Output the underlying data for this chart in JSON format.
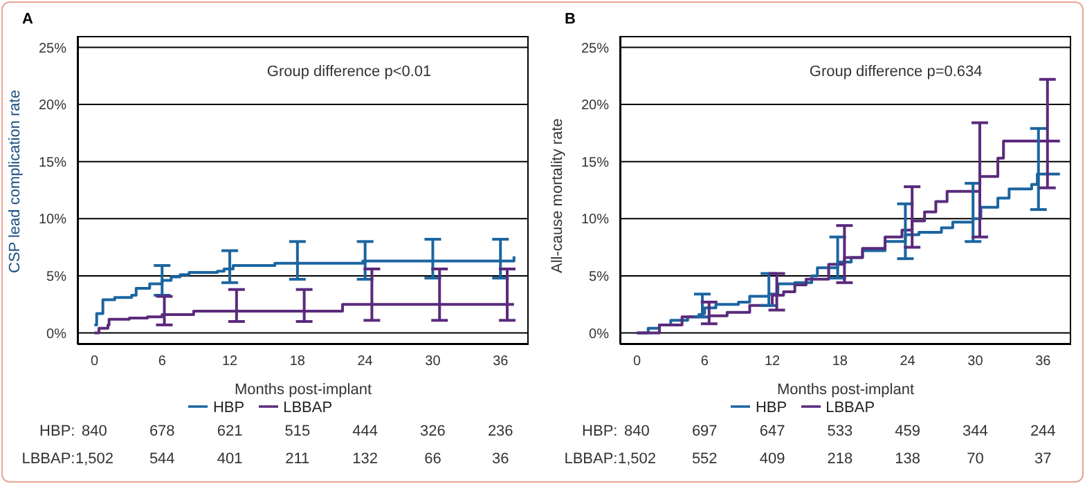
{
  "chart_data": [
    {
      "type": "step",
      "title": "A",
      "xlabel": "Months post-implant",
      "ylabel": "CSP lead complication rate",
      "xlim": [
        -1.5,
        38.5
      ],
      "ylim": [
        -1,
        26
      ],
      "xticks": [
        0,
        6,
        12,
        18,
        24,
        30,
        36
      ],
      "yticks": [
        {
          "value": 0,
          "label": "0%"
        },
        {
          "value": 5,
          "label": "5%"
        },
        {
          "value": 10,
          "label": "10%"
        },
        {
          "value": 15,
          "label": "15%"
        },
        {
          "value": 20,
          "label": "20%"
        },
        {
          "value": 25,
          "label": "25%"
        }
      ],
      "grid": "y",
      "legend": "bottom",
      "marker": "none",
      "line_style": "solid",
      "annotations": [
        "Group difference p<0.01",
        "HBP:",
        "840",
        "678",
        "621",
        "515",
        "444",
        "326",
        "236",
        "LBBAP:",
        "1,502",
        "544",
        "401",
        "211",
        "132",
        "66",
        "36"
      ],
      "series": [
        {
          "name": "HBP",
          "color": "#1b65a0",
          "x": [
            0,
            0.2,
            0.75,
            1.8,
            3.3,
            3.7,
            4.9,
            6,
            6.8,
            7.6,
            8.4,
            10.9,
            11.5,
            12,
            12.3,
            16,
            18,
            23.8,
            24,
            30,
            36,
            37.2
          ],
          "values": [
            0.7,
            1.7,
            2.9,
            3.1,
            3.3,
            3.9,
            4.3,
            4.6,
            4.9,
            5.1,
            5.3,
            5.4,
            5.6,
            5.6,
            5.9,
            6.1,
            6.1,
            6.3,
            6.3,
            6.3,
            6.3,
            6.7
          ],
          "errors": [
            null,
            null,
            null,
            null,
            null,
            null,
            null,
            [
              3.3,
              5.9
            ],
            null,
            null,
            null,
            null,
            null,
            [
              4.4,
              7.2
            ],
            null,
            null,
            [
              4.7,
              8.0
            ],
            null,
            [
              4.7,
              8.0
            ],
            [
              4.8,
              8.2
            ],
            [
              4.8,
              8.2
            ],
            null
          ]
        },
        {
          "name": "LBBAP",
          "color": "#5a2a7c",
          "x": [
            0,
            0.4,
            1.2,
            1.3,
            3.1,
            4.7,
            6,
            6.2,
            8.8,
            12.6,
            18.6,
            22,
            24.6,
            30.6,
            36.6,
            37.2
          ],
          "values": [
            0,
            0.4,
            0.7,
            1.2,
            1.3,
            1.4,
            1.6,
            1.6,
            1.9,
            1.9,
            1.9,
            2.5,
            2.5,
            2.5,
            2.5,
            2.5
          ],
          "errors": [
            null,
            null,
            null,
            null,
            null,
            null,
            null,
            [
              0.7,
              3.2
            ],
            null,
            [
              1.0,
              3.8
            ],
            [
              1.0,
              3.8
            ],
            null,
            [
              1.1,
              5.6
            ],
            [
              1.1,
              5.6
            ],
            [
              1.1,
              5.6
            ],
            null
          ]
        }
      ]
    },
    {
      "type": "step",
      "title": "B",
      "xlabel": "Months post-implant",
      "ylabel": "All-cause mortality rate",
      "xlim": [
        -1.5,
        38.5
      ],
      "ylim": [
        -1,
        26
      ],
      "xticks": [
        0,
        6,
        12,
        18,
        24,
        30,
        36
      ],
      "yticks": [
        {
          "value": 0,
          "label": "0%"
        },
        {
          "value": 5,
          "label": "5%"
        },
        {
          "value": 10,
          "label": "10%"
        },
        {
          "value": 15,
          "label": "15%"
        },
        {
          "value": 20,
          "label": "20%"
        },
        {
          "value": 25,
          "label": "25%"
        }
      ],
      "grid": "y",
      "legend": "bottom",
      "marker": "none",
      "line_style": "solid",
      "annotations": [
        "Group difference p=0.634",
        "HBP:",
        "840",
        "697",
        "647",
        "533",
        "459",
        "344",
        "244",
        "LBBAP:",
        "1,502",
        "552",
        "409",
        "218",
        "138",
        "70",
        "37"
      ],
      "series": [
        {
          "name": "HBP",
          "color": "#1b65a0",
          "x": [
            0,
            1,
            2,
            3,
            4.5,
            5.5,
            5.8,
            6,
            7,
            9,
            10,
            11.7,
            12.5,
            14,
            15.5,
            16,
            17.8,
            19,
            20,
            22,
            23.8,
            25,
            27,
            28,
            29.8,
            30.5,
            32,
            33,
            35,
            35.5,
            35.6,
            37.5
          ],
          "values": [
            0,
            0.4,
            0.7,
            1.1,
            1.4,
            1.6,
            1.7,
            2.2,
            2.5,
            2.7,
            3.2,
            3.4,
            4.3,
            4.4,
            5.0,
            5.7,
            6.2,
            6.6,
            7.2,
            8.0,
            8.6,
            8.8,
            9.2,
            9.7,
            10.0,
            11.0,
            11.8,
            12.6,
            13.0,
            13.9,
            13.9,
            13.9
          ],
          "errors": [
            null,
            null,
            null,
            null,
            null,
            null,
            [
              1.4,
              3.4
            ],
            null,
            null,
            null,
            null,
            [
              2.4,
              5.2
            ],
            null,
            null,
            null,
            null,
            [
              4.8,
              8.4
            ],
            null,
            null,
            null,
            [
              6.5,
              11.3
            ],
            null,
            null,
            null,
            [
              8.0,
              13.1
            ],
            null,
            null,
            null,
            null,
            null,
            [
              10.8,
              17.9
            ],
            null
          ]
        },
        {
          "name": "LBBAP",
          "color": "#5a2a7c",
          "x": [
            0,
            2,
            4,
            6.4,
            8,
            10,
            12,
            12.4,
            13,
            14,
            15,
            17,
            18.4,
            20,
            22,
            23.5,
            24.4,
            25.5,
            26.5,
            27.5,
            30.4,
            32,
            32.5,
            36.4,
            37.5
          ],
          "values": [
            0,
            0.7,
            1.4,
            1.5,
            1.8,
            2.4,
            3.3,
            3.3,
            3.6,
            4.2,
            4.7,
            6.0,
            6.6,
            7.4,
            8.4,
            9.0,
            9.8,
            10.6,
            11.5,
            12.4,
            13.7,
            15.3,
            16.8,
            16.8,
            16.8
          ],
          "errors": [
            null,
            null,
            null,
            [
              0.8,
              2.7
            ],
            null,
            null,
            null,
            [
              2.0,
              5.2
            ],
            null,
            null,
            null,
            null,
            [
              4.4,
              9.4
            ],
            null,
            null,
            null,
            [
              7.5,
              12.8
            ],
            null,
            null,
            null,
            [
              8.4,
              18.4
            ],
            null,
            null,
            [
              12.7,
              22.2
            ],
            null
          ]
        }
      ]
    }
  ]
}
